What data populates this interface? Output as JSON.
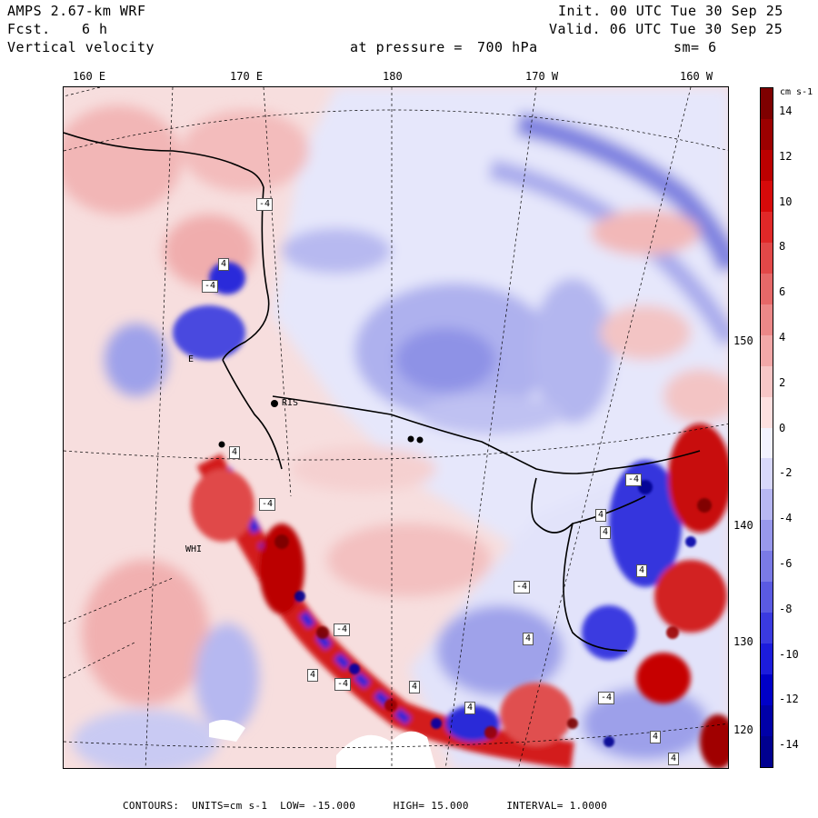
{
  "header": {
    "model": "AMPS 2.67-km WRF",
    "fcst_label": "Fcst.",
    "fcst_value": "6 h",
    "field": "Vertical velocity",
    "init": "Init. 00 UTC Tue 30 Sep 25",
    "valid": "Valid. 06 UTC Tue 30 Sep 25",
    "pressure_label": "at pressure =",
    "pressure_value": "700 hPa",
    "smoothing": "sm= 6"
  },
  "longitude_labels": [
    "160 E",
    "170 E",
    "180",
    "170 W",
    "160 W"
  ],
  "latitude_labels": [
    "150 W",
    "140 W",
    "130 W",
    "120 W"
  ],
  "place_labels": [
    "RIS",
    "WHI",
    "E"
  ],
  "colorbar": {
    "units_label": "cm s-1",
    "ticks": [
      "14",
      "12",
      "10",
      "8",
      "6",
      "4",
      "2",
      "0",
      "-2",
      "-4",
      "-6",
      "-8",
      "-10",
      "-12",
      "-14"
    ],
    "min": -15,
    "max": 15,
    "colors": [
      "#f2f2fe",
      "#d8d8fa",
      "#b7b7f2",
      "#9898ec",
      "#7a7ae6",
      "#5a5ae2",
      "#3a3ae0",
      "#1c1cdc",
      "#0000c8",
      "#0000a8",
      "#000090",
      "#fde0e0",
      "#f7c6c6",
      "#f2a8a8",
      "#ec8888",
      "#e66868",
      "#e24848",
      "#e02828",
      "#d60a0a",
      "#bc0000",
      "#9c0000",
      "#7e0000"
    ]
  },
  "contour_labels": [
    "-4",
    "4",
    "-4",
    "4",
    "-4",
    "4",
    "-4",
    "4",
    "4",
    "-4",
    "4",
    "-4",
    "4",
    "-4",
    "4",
    "4",
    "-4",
    "4",
    "4"
  ],
  "footer": {
    "contours": "CONTOURS:",
    "units": "UNITS=cm s-1",
    "low": "LOW= -15.000",
    "high": "HIGH= 15.000",
    "interval": "INTERVAL= 1.0000"
  }
}
